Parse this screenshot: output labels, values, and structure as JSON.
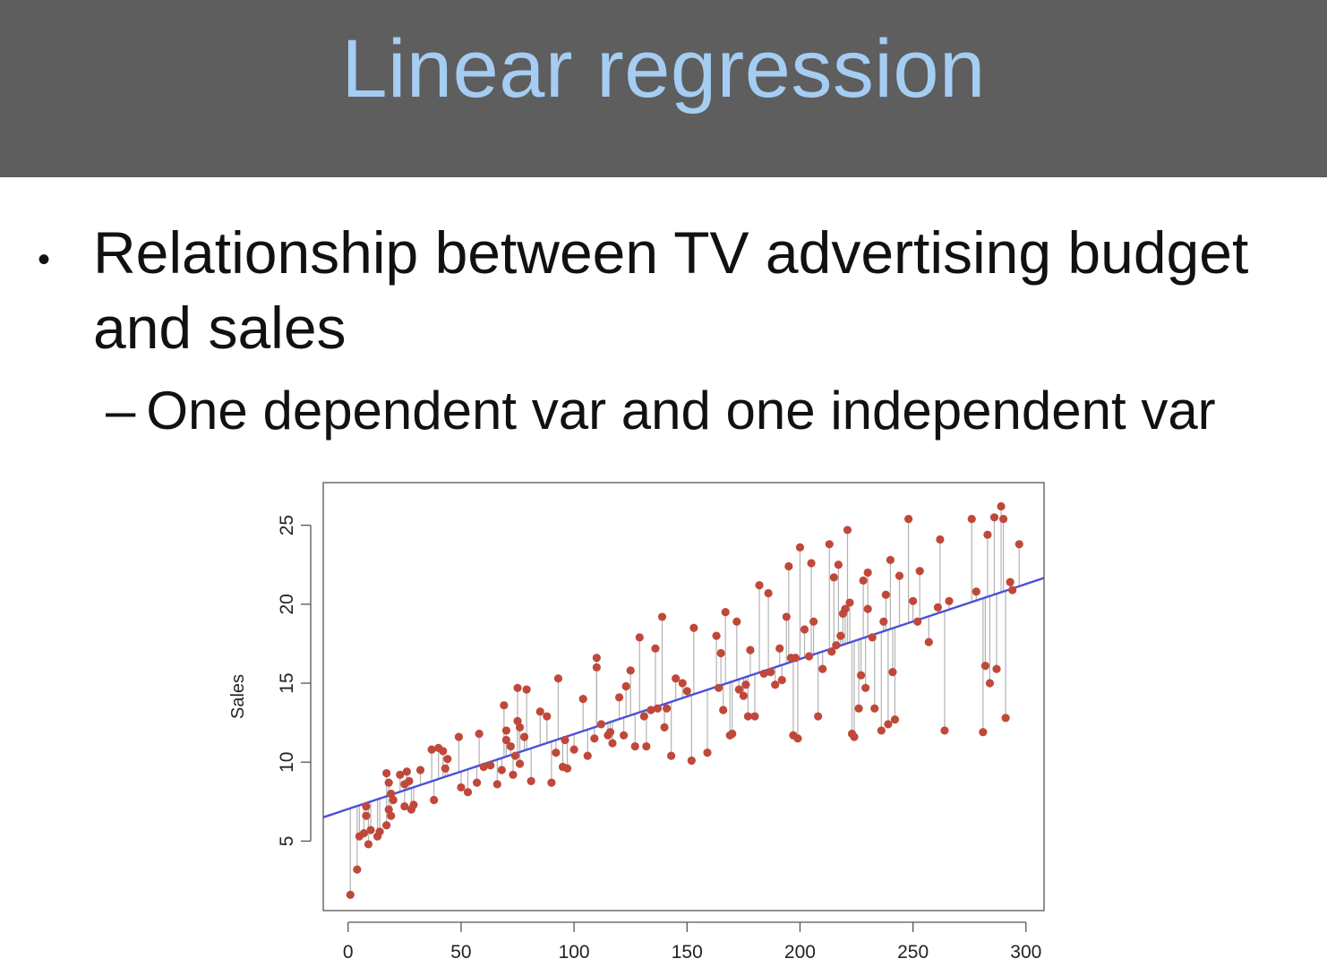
{
  "slide": {
    "title": "Linear regression",
    "bullet": "Relationship between TV advertising budget and sales",
    "sub_dash": "–",
    "sub_bullet": "One dependent var and one independent var"
  },
  "colors": {
    "title_bar": "#5e5e5e",
    "title_text": "#a5cdf3",
    "points": "#c0483a",
    "fit_line": "#4a50d8",
    "residuals": "#b3b3b3"
  },
  "chart_data": {
    "type": "scatter",
    "title": "",
    "xlabel": "",
    "ylabel": "Sales",
    "xlim": [
      -11,
      308
    ],
    "ylim": [
      0.6,
      27.7
    ],
    "xticks": [
      0,
      50,
      100,
      150,
      200,
      250,
      300
    ],
    "yticks": [
      5,
      10,
      15,
      20,
      25
    ],
    "grid": false,
    "fit_line": {
      "intercept": 7.03,
      "slope": 0.0475
    },
    "series": [
      {
        "x": [
          1,
          4,
          5,
          7,
          8,
          8,
          9,
          10,
          13,
          14,
          17,
          17,
          18,
          18,
          19,
          19,
          20,
          23,
          25,
          25,
          26,
          27,
          28,
          29,
          32,
          37,
          38,
          40,
          42,
          43,
          44,
          49,
          50,
          53,
          57,
          58,
          60,
          63,
          66,
          68,
          69,
          70,
          70,
          72,
          73,
          74,
          75,
          75,
          76,
          76,
          78,
          79,
          81,
          85,
          88,
          90,
          92,
          93,
          95,
          96,
          97,
          100,
          104,
          106,
          109,
          110,
          110,
          112,
          115,
          116,
          117,
          120,
          122,
          123,
          125,
          127,
          129,
          131,
          132,
          134,
          136,
          137,
          139,
          140,
          141,
          143,
          145,
          148,
          150,
          152,
          153,
          159,
          163,
          164,
          165,
          166,
          167,
          169,
          170,
          172,
          173,
          175,
          176,
          177,
          178,
          180,
          182,
          184,
          186,
          187,
          189,
          191,
          192,
          194,
          195,
          196,
          197,
          198,
          199,
          200,
          202,
          204,
          205,
          206,
          208,
          210,
          213,
          214,
          215,
          216,
          217,
          218,
          219,
          220,
          221,
          222,
          223,
          224,
          226,
          227,
          228,
          229,
          230,
          230,
          232,
          233,
          236,
          237,
          238,
          239,
          240,
          241,
          242,
          244,
          248,
          250,
          252,
          253,
          257,
          261,
          262,
          264,
          266,
          276,
          278,
          281,
          282,
          283,
          284,
          286,
          287,
          289,
          290,
          291,
          293,
          294,
          297
        ],
        "y": [
          1.6,
          3.2,
          5.3,
          5.5,
          6.6,
          7.2,
          4.8,
          5.7,
          5.3,
          5.6,
          9.3,
          6.0,
          8.7,
          7.0,
          8.0,
          6.6,
          7.6,
          9.2,
          7.2,
          8.6,
          9.4,
          8.8,
          7.0,
          7.3,
          9.5,
          10.8,
          7.6,
          10.9,
          10.7,
          9.6,
          10.2,
          11.6,
          8.4,
          8.1,
          8.7,
          11.8,
          9.7,
          9.8,
          8.6,
          9.5,
          13.6,
          12.0,
          11.4,
          11.0,
          9.2,
          10.4,
          14.7,
          12.6,
          12.2,
          9.9,
          11.6,
          14.6,
          8.8,
          13.2,
          12.9,
          8.7,
          10.6,
          15.3,
          9.7,
          11.4,
          9.6,
          10.8,
          14.0,
          10.4,
          11.5,
          16.6,
          16.0,
          12.4,
          11.7,
          11.9,
          11.2,
          14.1,
          11.7,
          14.8,
          15.8,
          11.0,
          17.9,
          12.9,
          11.0,
          13.3,
          17.2,
          13.4,
          19.2,
          12.2,
          13.4,
          10.4,
          15.3,
          15.0,
          14.5,
          10.1,
          18.5,
          10.6,
          18.0,
          14.7,
          16.9,
          13.3,
          19.5,
          11.7,
          11.8,
          18.9,
          14.6,
          14.2,
          14.9,
          12.9,
          17.1,
          12.9,
          21.2,
          15.6,
          20.7,
          15.7,
          14.9,
          17.2,
          15.2,
          19.2,
          22.4,
          16.6,
          11.7,
          16.6,
          11.5,
          23.6,
          18.4,
          16.7,
          22.6,
          18.9,
          12.9,
          15.9,
          23.8,
          17.0,
          21.7,
          17.4,
          22.5,
          18.0,
          19.4,
          19.7,
          24.7,
          20.1,
          11.8,
          11.6,
          13.4,
          15.5,
          21.5,
          14.7,
          22.0,
          19.7,
          17.9,
          13.4,
          12.0,
          18.9,
          20.6,
          12.4,
          22.8,
          15.7,
          12.7,
          21.8,
          25.4,
          20.2,
          18.9,
          22.1,
          17.6,
          19.8,
          24.1,
          12.0,
          20.2,
          25.4,
          20.8,
          11.9,
          16.1,
          24.4,
          15.0,
          25.5,
          15.9,
          26.2,
          25.4,
          12.8,
          21.4,
          20.9,
          23.8
        ]
      }
    ]
  }
}
